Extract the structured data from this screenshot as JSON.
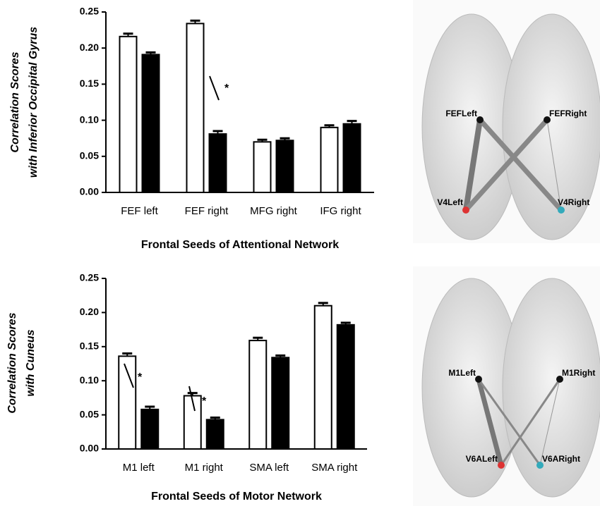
{
  "chart_data": [
    {
      "type": "bar",
      "x_label": "Frontal Seeds of Attentional Network",
      "y_label": [
        "Correlation Scores",
        "with Inferior Occipital Gyrus"
      ],
      "categories": [
        "FEF left",
        "FEF right",
        "MFG right",
        "IFG right"
      ],
      "series": [
        {
          "color": "#ffffff",
          "values": [
            0.216,
            0.234,
            0.07,
            0.09
          ],
          "errors": [
            0.004,
            0.004,
            0.003,
            0.003
          ]
        },
        {
          "color": "#000000",
          "values": [
            0.191,
            0.081,
            0.072,
            0.095
          ],
          "errors": [
            0.003,
            0.004,
            0.003,
            0.004
          ]
        }
      ],
      "annotations": [
        "*"
      ],
      "ylim": [
        0,
        0.25
      ],
      "yticks": [
        {
          "value": 0,
          "label": "0.00"
        },
        0.05,
        {
          "value": 0.1,
          "label": "0.10"
        },
        0.15,
        {
          "value": 0.2,
          "label": "0.20"
        },
        0.25
      ]
    },
    {
      "type": "bar",
      "x_label": "Frontal Seeds of Motor Network",
      "y_label": [
        "Correlation Scores",
        "with Cuneus"
      ],
      "categories": [
        "M1 left",
        "M1 right",
        "SMA left",
        "SMA right"
      ],
      "series": [
        {
          "color": "#ffffff",
          "values": [
            0.136,
            0.078,
            0.159,
            0.21
          ],
          "errors": [
            0.004,
            0.004,
            0.004,
            0.004
          ]
        },
        {
          "color": "#000000",
          "values": [
            0.058,
            0.043,
            0.134,
            0.182
          ],
          "errors": [
            0.004,
            0.003,
            0.003,
            0.003
          ]
        }
      ],
      "annotations": [
        "*",
        "*"
      ],
      "ylim": [
        0,
        0.25
      ],
      "yticks": [
        {
          "value": 0,
          "label": "0.00"
        },
        0.05,
        {
          "value": 0.1,
          "label": "0.10"
        },
        0.15,
        {
          "value": 0.2,
          "label": "0.20"
        },
        0.25
      ]
    }
  ],
  "brain_maps": [
    {
      "labels": [
        "FEFLeft",
        "FEFRight",
        "V4Left",
        "V4Right"
      ]
    },
    {
      "labels": [
        "M1Left",
        "M1Right",
        "V6ALeft",
        "V6ARight"
      ]
    }
  ]
}
